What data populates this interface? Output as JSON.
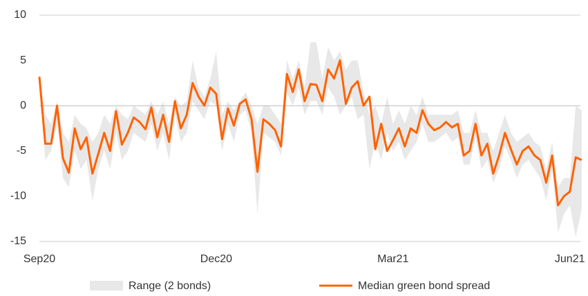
{
  "chart_data": {
    "type": "line",
    "categories": [
      "Sep20",
      null,
      null,
      null,
      null,
      null,
      null,
      null,
      null,
      null,
      null,
      null,
      null,
      null,
      null,
      null,
      null,
      null,
      null,
      null,
      null,
      null,
      null,
      null,
      null,
      null,
      null,
      null,
      null,
      null,
      "Dec20",
      null,
      null,
      null,
      null,
      null,
      null,
      null,
      null,
      null,
      null,
      null,
      null,
      null,
      null,
      null,
      null,
      null,
      null,
      null,
      null,
      null,
      null,
      null,
      null,
      null,
      null,
      null,
      null,
      null,
      "Mar21",
      null,
      null,
      null,
      null,
      null,
      null,
      null,
      null,
      null,
      null,
      null,
      null,
      null,
      null,
      null,
      null,
      null,
      null,
      null,
      null,
      null,
      null,
      null,
      null,
      null,
      null,
      null,
      null,
      null,
      "Jun21",
      null,
      null
    ],
    "series": [
      {
        "name": "Range (2 bonds)",
        "color": "#e8e8e8",
        "high": [
          3.5,
          -1,
          -2,
          0.5,
          -3,
          -4,
          -1,
          -2,
          -2.5,
          -4,
          -3,
          -1,
          -2,
          0,
          -1,
          -1.5,
          0,
          -0.5,
          -1,
          0.5,
          -1,
          0.5,
          -2,
          1,
          0,
          0.5,
          5,
          2,
          1,
          3,
          6,
          -1,
          0.5,
          -0.5,
          0.5,
          1.5,
          0,
          -2,
          0,
          0,
          -1,
          -2,
          5,
          3,
          5,
          2,
          7,
          7,
          3,
          6.5,
          5,
          6,
          4,
          5,
          5,
          1.5,
          -1,
          0,
          -2,
          1,
          -2,
          -0.5,
          -2,
          0,
          -1,
          1,
          -1,
          -1,
          -1,
          -1,
          -1,
          -0.5,
          -3,
          -3,
          -0.5,
          -3,
          -3,
          -5,
          -3,
          -1,
          -3,
          -4,
          -3.5,
          -3,
          -4,
          -4.5,
          -7,
          -4,
          -9,
          -8,
          -8,
          0,
          -0.5
        ],
        "low": [
          2.5,
          -6,
          -5,
          -2,
          -8,
          -9,
          -5,
          -7,
          -6,
          -10.5,
          -7,
          -5,
          -7,
          -3,
          -6,
          -5,
          -3,
          -3.5,
          -4,
          -2,
          -5,
          -3,
          -6,
          -1,
          -4,
          -3,
          0.5,
          -0.5,
          -1.5,
          0.5,
          0,
          -5,
          -2,
          -4,
          -1,
          -0.5,
          -3,
          -12,
          -3,
          -3.5,
          -4,
          -5.5,
          1.5,
          0,
          2,
          -1,
          0.5,
          0.5,
          -1,
          2,
          1,
          -1,
          0,
          1,
          -1.5,
          -1,
          -7,
          -4,
          -6,
          -3,
          -5,
          -4,
          -6,
          -5,
          -4,
          -2,
          -4,
          -4,
          -3.5,
          -3,
          -4,
          -3.5,
          -6.5,
          -6.5,
          -3.5,
          -7,
          -6,
          -8.5,
          -7,
          -4.5,
          -6,
          -8,
          -6.5,
          -6,
          -7,
          -8,
          -10.5,
          -7,
          -14,
          -12,
          -11,
          -14.5,
          -11.5
        ]
      },
      {
        "name": "Median green bond spread",
        "color": "#ff6200",
        "values": [
          3.2,
          -4.2,
          -4.2,
          0,
          -5.8,
          -7.4,
          -2.5,
          -4.8,
          -3.5,
          -7.5,
          -5.3,
          -3,
          -5,
          -0.6,
          -4.3,
          -3,
          -1.3,
          -1.8,
          -2.6,
          -0.2,
          -3.5,
          -1,
          -4,
          0.5,
          -2.5,
          -1,
          2.5,
          1,
          0,
          2,
          1.3,
          -3.7,
          -0.3,
          -2.2,
          0.2,
          0.7,
          -1.5,
          -7.3,
          -1.5,
          -2,
          -2.7,
          -4.5,
          3.5,
          1.5,
          4,
          0.5,
          2.4,
          2.3,
          0.5,
          4,
          3,
          5,
          0.2,
          2,
          2.7,
          0,
          1,
          -4.8,
          -2,
          -5,
          -3.8,
          -2.5,
          -4.5,
          -2.5,
          -3,
          -0.5,
          -2,
          -2.7,
          -2.4,
          -1.8,
          -2.4,
          -2,
          -5.5,
          -5,
          -2,
          -5.5,
          -4.2,
          -7.5,
          -5.5,
          -3,
          -4.8,
          -6.5,
          -5,
          -4.5,
          -5.5,
          -6,
          -8.5,
          -5.5,
          -11,
          -10,
          -9.5,
          -5.7,
          -6
        ]
      }
    ],
    "ylim": [
      -15,
      10
    ],
    "yticks": [
      10,
      5,
      0,
      -5,
      -10,
      -15
    ]
  }
}
